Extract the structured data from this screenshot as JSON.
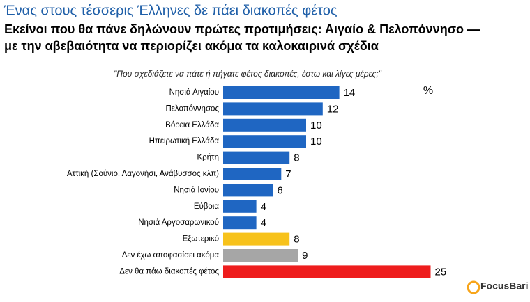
{
  "chart_data": {
    "type": "bar",
    "orientation": "horizontal",
    "title": "Ένας στους τέσσερις Έλληνες δε πάει διακοπές φέτος",
    "subtitle": [
      "Εκείνοι που θα πάνε δηλώνουν πρώτες προτιμήσεις: Αιγαίο & Πελοπόννησο —",
      "με την αβεβαιότητα να περιορίζει ακόμα τα καλοκαιρινά σχέδια"
    ],
    "question": "\"Που σχεδιάζετε να πάτε ή πήγατε φέτος διακοπές, έστω και λίγες μέρες;\"",
    "unit_label": "%",
    "categories": [
      "Νησιά Αιγαίου",
      "Πελοπόννησος",
      "Βόρεια Ελλάδα",
      "Ηπειρωτική Ελλάδα",
      "Κρήτη",
      "Αττική (Σούνιο, Λαγονήσι, Ανάβυσσος κλπ)",
      "Νησιά Ιονίου",
      "Εύβοια",
      "Νησιά Αργοσαρωνικού",
      "Εξωτερικό",
      "Δεν έχω αποφασίσει ακόμα",
      "Δεν θα πάω διακοπές φέτος"
    ],
    "values": [
      14,
      12,
      10,
      10,
      8,
      7,
      6,
      4,
      4,
      8,
      9,
      25
    ],
    "colors": [
      "#1f66c2",
      "#1f66c2",
      "#1f66c2",
      "#1f66c2",
      "#1f66c2",
      "#1f66c2",
      "#1f66c2",
      "#1f66c2",
      "#1f66c2",
      "#f7c21b",
      "#a6a6a6",
      "#ee1d1d"
    ],
    "source": "FocusBari"
  }
}
